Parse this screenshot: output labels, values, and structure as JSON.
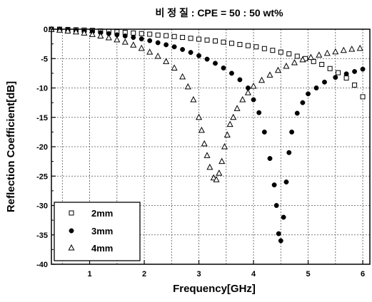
{
  "chart_data": {
    "type": "scatter",
    "title": "비 정 질 : CPE = 50 : 50 wt%",
    "xlabel": "Frequency[GHz]",
    "ylabel": "Reflection Coefficient[dB]",
    "xlim": [
      0.3,
      6.0
    ],
    "ylim": [
      -40,
      0
    ],
    "x_ticks": [
      1,
      2,
      3,
      4,
      5,
      6
    ],
    "y_ticks": [
      0,
      -5,
      -10,
      -15,
      -20,
      -25,
      -30,
      -35,
      -40
    ],
    "grid": true,
    "legend_position": "bottom-left",
    "series": [
      {
        "name": "2mm",
        "marker": "open-square",
        "points": [
          [
            0.3,
            0
          ],
          [
            0.45,
            0
          ],
          [
            0.6,
            -0.05
          ],
          [
            0.75,
            -0.1
          ],
          [
            0.9,
            -0.15
          ],
          [
            1.05,
            -0.2
          ],
          [
            1.2,
            -0.3
          ],
          [
            1.35,
            -0.35
          ],
          [
            1.5,
            -0.45
          ],
          [
            1.65,
            -0.55
          ],
          [
            1.8,
            -0.65
          ],
          [
            1.95,
            -0.75
          ],
          [
            2.1,
            -0.85
          ],
          [
            2.25,
            -1.0
          ],
          [
            2.4,
            -1.1
          ],
          [
            2.55,
            -1.25
          ],
          [
            2.7,
            -1.4
          ],
          [
            2.85,
            -1.55
          ],
          [
            3.0,
            -1.7
          ],
          [
            3.15,
            -1.85
          ],
          [
            3.3,
            -2.0
          ],
          [
            3.45,
            -2.2
          ],
          [
            3.6,
            -2.4
          ],
          [
            3.75,
            -2.6
          ],
          [
            3.9,
            -2.8
          ],
          [
            4.05,
            -3.0
          ],
          [
            4.2,
            -3.3
          ],
          [
            4.35,
            -3.6
          ],
          [
            4.5,
            -3.9
          ],
          [
            4.65,
            -4.2
          ],
          [
            4.8,
            -4.6
          ],
          [
            4.95,
            -5.0
          ],
          [
            5.1,
            -5.5
          ],
          [
            5.25,
            -6.0
          ],
          [
            5.4,
            -6.7
          ],
          [
            5.55,
            -7.4
          ],
          [
            5.7,
            -8.3
          ],
          [
            5.85,
            -9.5
          ],
          [
            6.0,
            -11.5
          ]
        ]
      },
      {
        "name": "3mm",
        "marker": "filled-circle",
        "points": [
          [
            0.3,
            0
          ],
          [
            0.45,
            -0.05
          ],
          [
            0.6,
            -0.1
          ],
          [
            0.75,
            -0.2
          ],
          [
            0.9,
            -0.3
          ],
          [
            1.05,
            -0.45
          ],
          [
            1.2,
            -0.6
          ],
          [
            1.35,
            -0.75
          ],
          [
            1.5,
            -0.95
          ],
          [
            1.65,
            -1.15
          ],
          [
            1.8,
            -1.4
          ],
          [
            1.95,
            -1.65
          ],
          [
            2.1,
            -1.95
          ],
          [
            2.25,
            -2.3
          ],
          [
            2.4,
            -2.65
          ],
          [
            2.55,
            -3.0
          ],
          [
            2.7,
            -3.45
          ],
          [
            2.85,
            -3.95
          ],
          [
            3.0,
            -4.5
          ],
          [
            3.15,
            -5.1
          ],
          [
            3.3,
            -5.8
          ],
          [
            3.45,
            -6.6
          ],
          [
            3.6,
            -7.5
          ],
          [
            3.75,
            -8.6
          ],
          [
            3.9,
            -10.0
          ],
          [
            4.0,
            -12.0
          ],
          [
            4.1,
            -14.2
          ],
          [
            4.2,
            -17.5
          ],
          [
            4.3,
            -22.0
          ],
          [
            4.38,
            -26.5
          ],
          [
            4.42,
            -30.0
          ],
          [
            4.46,
            -34.8
          ],
          [
            4.5,
            -36.0
          ],
          [
            4.55,
            -32.0
          ],
          [
            4.6,
            -26.0
          ],
          [
            4.65,
            -21.0
          ],
          [
            4.7,
            -17.5
          ],
          [
            4.8,
            -14.3
          ],
          [
            4.9,
            -12.5
          ],
          [
            5.0,
            -11.0
          ],
          [
            5.15,
            -10.0
          ],
          [
            5.3,
            -9.0
          ],
          [
            5.5,
            -8.2
          ],
          [
            5.7,
            -7.6
          ],
          [
            5.85,
            -7.2
          ],
          [
            6.0,
            -6.8
          ]
        ]
      },
      {
        "name": "4mm",
        "marker": "open-triangle",
        "points": [
          [
            0.3,
            -0.05
          ],
          [
            0.45,
            -0.15
          ],
          [
            0.6,
            -0.3
          ],
          [
            0.75,
            -0.45
          ],
          [
            0.9,
            -0.65
          ],
          [
            1.05,
            -0.9
          ],
          [
            1.2,
            -1.15
          ],
          [
            1.35,
            -1.45
          ],
          [
            1.5,
            -1.8
          ],
          [
            1.65,
            -2.2
          ],
          [
            1.8,
            -2.7
          ],
          [
            1.95,
            -3.25
          ],
          [
            2.1,
            -3.9
          ],
          [
            2.25,
            -4.6
          ],
          [
            2.4,
            -5.5
          ],
          [
            2.55,
            -6.6
          ],
          [
            2.7,
            -8.1
          ],
          [
            2.8,
            -9.8
          ],
          [
            2.9,
            -12.0
          ],
          [
            3.0,
            -15.0
          ],
          [
            3.05,
            -17.2
          ],
          [
            3.1,
            -19.5
          ],
          [
            3.15,
            -21.5
          ],
          [
            3.2,
            -23.5
          ],
          [
            3.27,
            -25.3
          ],
          [
            3.32,
            -25.6
          ],
          [
            3.37,
            -24.5
          ],
          [
            3.42,
            -22.5
          ],
          [
            3.47,
            -20.0
          ],
          [
            3.52,
            -18.0
          ],
          [
            3.57,
            -16.2
          ],
          [
            3.63,
            -15.0
          ],
          [
            3.7,
            -13.5
          ],
          [
            3.8,
            -12.0
          ],
          [
            3.9,
            -10.8
          ],
          [
            4.0,
            -9.7
          ],
          [
            4.15,
            -8.7
          ],
          [
            4.3,
            -7.8
          ],
          [
            4.45,
            -7.0
          ],
          [
            4.6,
            -6.3
          ],
          [
            4.75,
            -5.7
          ],
          [
            4.9,
            -5.2
          ],
          [
            5.05,
            -4.8
          ],
          [
            5.2,
            -4.4
          ],
          [
            5.35,
            -4.1
          ],
          [
            5.5,
            -3.85
          ],
          [
            5.65,
            -3.6
          ],
          [
            5.8,
            -3.4
          ],
          [
            5.95,
            -3.25
          ]
        ]
      }
    ]
  }
}
